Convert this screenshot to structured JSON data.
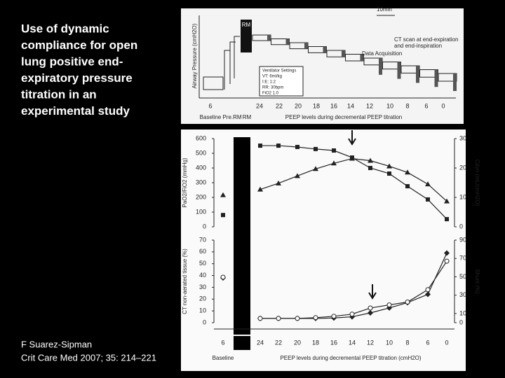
{
  "slide": {
    "title_lines": [
      "Use of dynamic",
      "compliance for open",
      "lung positive end-",
      "expiratory pressure",
      "titration in an",
      "experimental study"
    ],
    "citation": [
      "F Suarez-Sipman",
      "Crit Care Med 2007; 35: 214–221"
    ]
  },
  "protocol": {
    "time_scale": "10min",
    "rm": "RM",
    "ylabel": "Airway Pressure (cmH2O)",
    "ct_note": [
      "CT scan at end-expiration",
      "and end-inspiration"
    ],
    "data_acq": "Data Acquisition",
    "settings": [
      "Ventilator Settings",
      "VT: 6ml/kg",
      "I:E: 1:2",
      "RR: 30bpm",
      "FiO2 1.0"
    ],
    "peep_labels": [
      "6",
      "24",
      "22",
      "20",
      "18",
      "16",
      "14",
      "12",
      "10",
      "8",
      "6",
      "0"
    ],
    "phases": [
      "Baseline",
      "Pre.RM",
      "RM",
      "PEEP levels during decremental PEEP titration"
    ]
  },
  "chart_data": [
    {
      "type": "line",
      "ylabel": "PaO2/FiO2 (mmHg)",
      "y2label": "Cdyn (mL/cmH2O)",
      "ylim": [
        0,
        600
      ],
      "yticks": [
        0,
        100,
        200,
        300,
        400,
        500,
        600
      ],
      "y2lim": [
        0,
        30
      ],
      "y2ticks": [
        0,
        10,
        20,
        30
      ],
      "series": [
        {
          "marker": "square",
          "color": "#222222",
          "values": [
            80,
            null,
            552,
            552,
            543,
            529,
            519,
            471,
            400,
            362,
            276,
            186,
            52
          ]
        },
        {
          "marker": "triangle",
          "axis": "y2",
          "color": "#222222",
          "values": [
            10.8,
            null,
            12.7,
            14.8,
            17.3,
            19.7,
            21.6,
            23.2,
            22.5,
            20.6,
            18.5,
            14.5,
            8.7
          ]
        }
      ]
    },
    {
      "type": "line",
      "ylabel": "CT non-aerated tissue (%)",
      "y2label": "Shunt (%)",
      "xlabel": "PEEP levels during decremental PEEP titration (cmH2O)",
      "xgroup": "Baseline",
      "categories": [
        "6",
        "RM",
        "24",
        "22",
        "20",
        "18",
        "16",
        "14",
        "12",
        "10",
        "8",
        "6",
        "0"
      ],
      "ylim": [
        0,
        70
      ],
      "yticks": [
        0,
        10,
        20,
        30,
        40,
        50,
        60,
        70
      ],
      "y2lim": [
        0,
        90
      ],
      "y2ticks": [
        0,
        10,
        30,
        50,
        70,
        90
      ],
      "series": [
        {
          "marker": "diamond",
          "color": "#222222",
          "values": [
            38,
            null,
            3.6,
            3.6,
            3.6,
            3.6,
            4,
            5,
            8.3,
            12.5,
            17,
            24,
            59
          ]
        },
        {
          "marker": "circle",
          "axis": "y2",
          "color": "#222222",
          "values": [
            49.6,
            null,
            4.7,
            4.7,
            4.7,
            5.5,
            7,
            9.3,
            16,
            19.4,
            22.5,
            36,
            67
          ]
        }
      ]
    }
  ]
}
